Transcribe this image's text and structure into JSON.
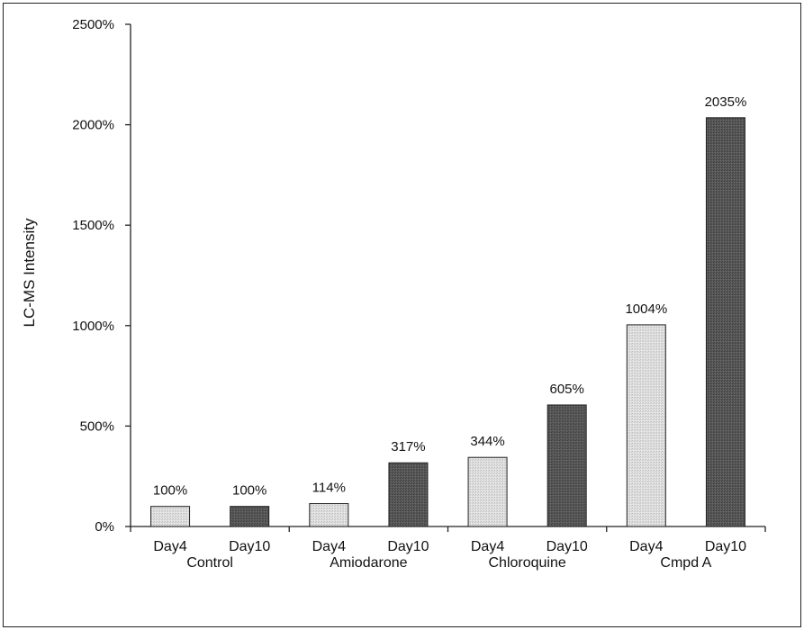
{
  "chart_data": {
    "type": "bar",
    "ylabel": "LC-MS Intensity",
    "ylim": [
      0,
      2500
    ],
    "yticks": [
      0,
      500,
      1000,
      1500,
      2000,
      2500
    ],
    "ytick_labels": [
      "0%",
      "500%",
      "1000%",
      "1500%",
      "2000%",
      "2500%"
    ],
    "groups": [
      "Control",
      "Amiodarone",
      "Chloroquine",
      "Cmpd A"
    ],
    "categories": [
      "Day4",
      "Day10",
      "Day4",
      "Day10",
      "Day4",
      "Day10",
      "Day4",
      "Day10"
    ],
    "values": [
      100,
      100,
      114,
      317,
      344,
      605,
      1004,
      2035
    ],
    "data_labels": [
      "100%",
      "100%",
      "114%",
      "317%",
      "344%",
      "605%",
      "1004%",
      "2035%"
    ],
    "bar_colors": {
      "Day4": "#dcdcdc",
      "Day10": "#5a5a5a"
    },
    "grid": false,
    "legend": "none"
  }
}
